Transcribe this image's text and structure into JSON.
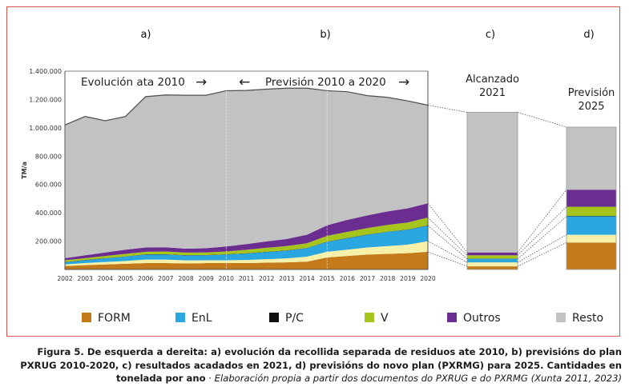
{
  "chart_data": {
    "type": "area",
    "panel_labels": [
      "a)",
      "b)",
      "c)",
      "d)"
    ],
    "annotation_evolucion": "Evolución ata 2010",
    "annotation_prevision": "Previsión  2010  a  2020",
    "arrow_glyph": "→",
    "arrow_glyph_left": "←",
    "ylabel": "TM/a",
    "ylim": [
      0,
      1400000
    ],
    "y_ticks": [
      "1.400.000",
      "1.200.000",
      "1.000.000",
      "800.000",
      "600.000",
      "400.000",
      "200.000"
    ],
    "x": [
      "2002",
      "2003",
      "2004",
      "2005",
      "2006",
      "2007",
      "2008",
      "2009",
      "2010",
      "2011",
      "2012",
      "2013",
      "2014",
      "2015",
      "2016",
      "2017",
      "2018",
      "2019",
      "2020"
    ],
    "series": [
      {
        "name": "FORM",
        "color": "#c47a1a",
        "values": [
          25000,
          30000,
          35000,
          40000,
          45000,
          45000,
          42000,
          45000,
          45000,
          45000,
          48000,
          50000,
          55000,
          85000,
          95000,
          105000,
          110000,
          115000,
          125000
        ]
      },
      {
        "name": "V",
        "color": "#f6f0a8",
        "values": [
          10000,
          15000,
          18000,
          20000,
          25000,
          25000,
          22000,
          20000,
          20000,
          22000,
          25000,
          28000,
          35000,
          40000,
          45000,
          50000,
          55000,
          60000,
          75000
        ]
      },
      {
        "name": "EnL",
        "color": "#2aa7e0",
        "values": [
          15000,
          20000,
          25000,
          30000,
          35000,
          35000,
          35000,
          35000,
          40000,
          45000,
          50000,
          55000,
          60000,
          70000,
          80000,
          90000,
          100000,
          105000,
          110000
        ]
      },
      {
        "name": "P/C",
        "color": "#111111",
        "values": [
          2000,
          2000,
          2000,
          2000,
          2000,
          2000,
          2000,
          2000,
          2000,
          2000,
          2000,
          2000,
          2000,
          2000,
          2000,
          2000,
          2000,
          2000,
          2000
        ]
      },
      {
        "name": "V",
        "color": "#a6c51c",
        "values": [
          13000,
          13000,
          15000,
          18000,
          18000,
          20000,
          18000,
          18000,
          20000,
          25000,
          28000,
          30000,
          33000,
          40000,
          43000,
          45000,
          48000,
          50000,
          55000
        ]
      },
      {
        "name": "Outros",
        "color": "#6b2d90",
        "values": [
          15000,
          20000,
          25000,
          30000,
          30000,
          30000,
          28000,
          30000,
          35000,
          40000,
          45000,
          50000,
          60000,
          75000,
          85000,
          90000,
          95000,
          100000,
          100000
        ]
      },
      {
        "name": "Resto",
        "color": "#c2c2c2",
        "values": [
          940000,
          980000,
          930000,
          940000,
          1065000,
          1075000,
          1083000,
          1080000,
          1100000,
          1085000,
          1075000,
          1065000,
          1035000,
          950000,
          905000,
          845000,
          805000,
          758000,
          693000
        ]
      }
    ],
    "total_line_color": "#4d4d4d",
    "bar_c": {
      "label_lines": [
        "Alcanzado",
        "2021"
      ],
      "values": [
        22000,
        28000,
        25000,
        2000,
        23000,
        20000,
        990000
      ]
    },
    "bar_d": {
      "label_lines": [
        "Previsión",
        "2025"
      ],
      "values": [
        190000,
        55000,
        130000,
        3000,
        65000,
        120000,
        442000
      ]
    },
    "legend": [
      {
        "label": "FORM",
        "color": "#c47a1a"
      },
      {
        "label": "EnL",
        "color": "#2aa7e0"
      },
      {
        "label": "P/C",
        "color": "#111111"
      },
      {
        "label": "V",
        "color": "#a6c51c"
      },
      {
        "label": "Outros",
        "color": "#6b2d90"
      },
      {
        "label": "Resto",
        "color": "#c2c2c2"
      }
    ]
  },
  "caption": {
    "bold": "Figura 5. De esquerda a dereita: a) evolución da recollida separada de residuos ate 2010, b) previsións do plan PXRUG 2010-2020, c) resultados acadados en 2021, d) previsións do novo plan (PXRMG) para 2025. Cantidades en tonelada por ano",
    "separator": " · ",
    "source": "Elaboración propia a partir dos documentos do PXRUG e do PXRMG (Xunta 2011, 2023)"
  }
}
